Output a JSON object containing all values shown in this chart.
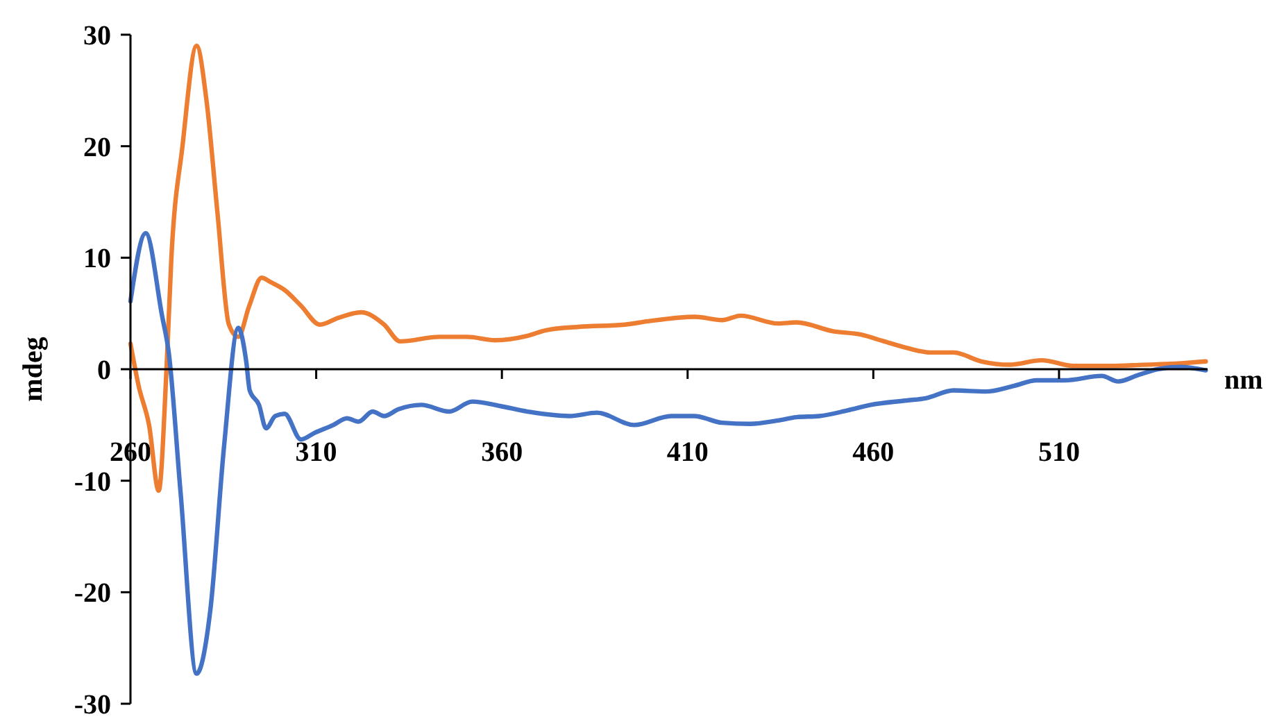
{
  "chart_data": {
    "type": "line",
    "xlabel": "nm",
    "ylabel": "mdeg",
    "xlim": [
      260,
      550
    ],
    "xticks": [
      260,
      310,
      360,
      410,
      460,
      510
    ],
    "ylim": [
      -30,
      30
    ],
    "yticks": [
      -30,
      -20,
      -10,
      0,
      10,
      20,
      30
    ],
    "grid": false,
    "marker": "none",
    "line_style": "solid",
    "series": [
      {
        "color": "#ed7d31",
        "x": [
          260,
          262.2,
          265,
          267.6,
          269.7,
          271,
          274,
          277.8,
          280.5,
          283.4,
          286.5,
          289,
          292,
          295.3,
          297.8,
          301.5,
          305.9,
          311,
          315.9,
          322.1,
          328.3,
          332.6,
          343.2,
          350.7,
          358.2,
          366.9,
          371.9,
          380.6,
          393.1,
          399.3,
          412,
          419.3,
          424.3,
          434.3,
          439.3,
          449.2,
          456.7,
          462.9,
          469.1,
          475.4,
          481.6,
          489.1,
          496.6,
          505.3,
          514,
          524,
          532.7,
          541.4,
          549.5
        ],
        "values": [
          2.3,
          -1.5,
          -5,
          -10.9,
          0,
          9.9,
          20,
          29,
          24,
          14.1,
          4,
          2.9,
          5.7,
          8.2,
          7.8,
          7.1,
          5.7,
          4,
          4.6,
          5.1,
          4,
          2.5,
          2.9,
          2.9,
          2.6,
          3,
          3.5,
          3.8,
          4,
          4.3,
          4.7,
          4.4,
          4.8,
          4.1,
          4.2,
          3.4,
          3.1,
          2.5,
          1.9,
          1.5,
          1.5,
          0.7,
          0.4,
          0.8,
          0.3,
          0.3,
          0.4,
          0.5,
          0.7
        ]
      },
      {
        "color": "#4472c4",
        "x": [
          260,
          264.1,
          268.5,
          270.3,
          273.5,
          277.8,
          281.5,
          285.2,
          289,
          291.2,
          292.1,
          294.6,
          296.5,
          299,
          301.5,
          305.9,
          309.6,
          314.6,
          318.3,
          321.4,
          325.2,
          328.3,
          332.1,
          338.3,
          345.8,
          352,
          359.5,
          366.9,
          378.2,
          385.6,
          395.6,
          405.6,
          411.8,
          419.3,
          426.8,
          434.3,
          439.3,
          445.5,
          453,
          459.3,
          469.1,
          474.1,
          481.6,
          490.3,
          497.8,
          504,
          511.5,
          521.5,
          525.9,
          531.5,
          536.5,
          542.7,
          549.5
        ],
        "values": [
          6.1,
          12.2,
          4.8,
          1.5,
          -11.1,
          -27.3,
          -21.6,
          -6.9,
          3.7,
          0.6,
          -1.9,
          -3.2,
          -5.3,
          -4.2,
          -4,
          -6.3,
          -5.7,
          -5,
          -4.4,
          -4.7,
          -3.8,
          -4.2,
          -3.6,
          -3.2,
          -3.8,
          -2.9,
          -3.3,
          -3.8,
          -4.2,
          -3.9,
          -5,
          -4.2,
          -4.2,
          -4.8,
          -4.9,
          -4.6,
          -4.3,
          -4.2,
          -3.7,
          -3.2,
          -2.8,
          -2.6,
          -1.9,
          -2,
          -1.5,
          -1,
          -1,
          -0.6,
          -1.1,
          -0.5,
          0,
          0.2,
          -0.1
        ]
      }
    ]
  }
}
